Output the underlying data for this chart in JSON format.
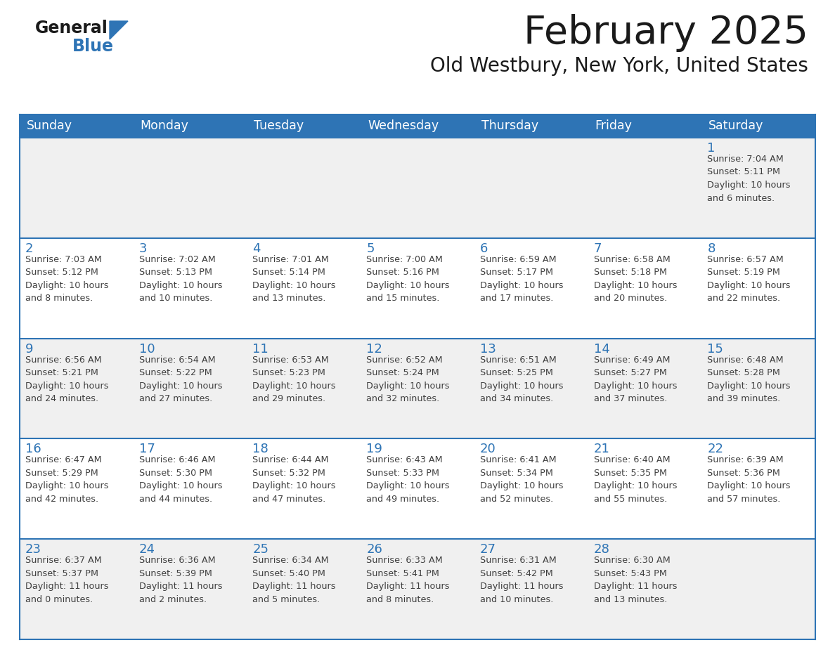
{
  "title": "February 2025",
  "subtitle": "Old Westbury, New York, United States",
  "header_bg": "#2E74B5",
  "header_text_color": "#FFFFFF",
  "row_border_color": "#2E74B5",
  "day_number_color": "#2E74B5",
  "info_text_color": "#404040",
  "background_color": "#FFFFFF",
  "alt_row_bg": "#F0F0F0",
  "days_of_week": [
    "Sunday",
    "Monday",
    "Tuesday",
    "Wednesday",
    "Thursday",
    "Friday",
    "Saturday"
  ],
  "weeks": [
    [
      {
        "day": null,
        "info": null
      },
      {
        "day": null,
        "info": null
      },
      {
        "day": null,
        "info": null
      },
      {
        "day": null,
        "info": null
      },
      {
        "day": null,
        "info": null
      },
      {
        "day": null,
        "info": null
      },
      {
        "day": 1,
        "info": "Sunrise: 7:04 AM\nSunset: 5:11 PM\nDaylight: 10 hours\nand 6 minutes."
      }
    ],
    [
      {
        "day": 2,
        "info": "Sunrise: 7:03 AM\nSunset: 5:12 PM\nDaylight: 10 hours\nand 8 minutes."
      },
      {
        "day": 3,
        "info": "Sunrise: 7:02 AM\nSunset: 5:13 PM\nDaylight: 10 hours\nand 10 minutes."
      },
      {
        "day": 4,
        "info": "Sunrise: 7:01 AM\nSunset: 5:14 PM\nDaylight: 10 hours\nand 13 minutes."
      },
      {
        "day": 5,
        "info": "Sunrise: 7:00 AM\nSunset: 5:16 PM\nDaylight: 10 hours\nand 15 minutes."
      },
      {
        "day": 6,
        "info": "Sunrise: 6:59 AM\nSunset: 5:17 PM\nDaylight: 10 hours\nand 17 minutes."
      },
      {
        "day": 7,
        "info": "Sunrise: 6:58 AM\nSunset: 5:18 PM\nDaylight: 10 hours\nand 20 minutes."
      },
      {
        "day": 8,
        "info": "Sunrise: 6:57 AM\nSunset: 5:19 PM\nDaylight: 10 hours\nand 22 minutes."
      }
    ],
    [
      {
        "day": 9,
        "info": "Sunrise: 6:56 AM\nSunset: 5:21 PM\nDaylight: 10 hours\nand 24 minutes."
      },
      {
        "day": 10,
        "info": "Sunrise: 6:54 AM\nSunset: 5:22 PM\nDaylight: 10 hours\nand 27 minutes."
      },
      {
        "day": 11,
        "info": "Sunrise: 6:53 AM\nSunset: 5:23 PM\nDaylight: 10 hours\nand 29 minutes."
      },
      {
        "day": 12,
        "info": "Sunrise: 6:52 AM\nSunset: 5:24 PM\nDaylight: 10 hours\nand 32 minutes."
      },
      {
        "day": 13,
        "info": "Sunrise: 6:51 AM\nSunset: 5:25 PM\nDaylight: 10 hours\nand 34 minutes."
      },
      {
        "day": 14,
        "info": "Sunrise: 6:49 AM\nSunset: 5:27 PM\nDaylight: 10 hours\nand 37 minutes."
      },
      {
        "day": 15,
        "info": "Sunrise: 6:48 AM\nSunset: 5:28 PM\nDaylight: 10 hours\nand 39 minutes."
      }
    ],
    [
      {
        "day": 16,
        "info": "Sunrise: 6:47 AM\nSunset: 5:29 PM\nDaylight: 10 hours\nand 42 minutes."
      },
      {
        "day": 17,
        "info": "Sunrise: 6:46 AM\nSunset: 5:30 PM\nDaylight: 10 hours\nand 44 minutes."
      },
      {
        "day": 18,
        "info": "Sunrise: 6:44 AM\nSunset: 5:32 PM\nDaylight: 10 hours\nand 47 minutes."
      },
      {
        "day": 19,
        "info": "Sunrise: 6:43 AM\nSunset: 5:33 PM\nDaylight: 10 hours\nand 49 minutes."
      },
      {
        "day": 20,
        "info": "Sunrise: 6:41 AM\nSunset: 5:34 PM\nDaylight: 10 hours\nand 52 minutes."
      },
      {
        "day": 21,
        "info": "Sunrise: 6:40 AM\nSunset: 5:35 PM\nDaylight: 10 hours\nand 55 minutes."
      },
      {
        "day": 22,
        "info": "Sunrise: 6:39 AM\nSunset: 5:36 PM\nDaylight: 10 hours\nand 57 minutes."
      }
    ],
    [
      {
        "day": 23,
        "info": "Sunrise: 6:37 AM\nSunset: 5:37 PM\nDaylight: 11 hours\nand 0 minutes."
      },
      {
        "day": 24,
        "info": "Sunrise: 6:36 AM\nSunset: 5:39 PM\nDaylight: 11 hours\nand 2 minutes."
      },
      {
        "day": 25,
        "info": "Sunrise: 6:34 AM\nSunset: 5:40 PM\nDaylight: 11 hours\nand 5 minutes."
      },
      {
        "day": 26,
        "info": "Sunrise: 6:33 AM\nSunset: 5:41 PM\nDaylight: 11 hours\nand 8 minutes."
      },
      {
        "day": 27,
        "info": "Sunrise: 6:31 AM\nSunset: 5:42 PM\nDaylight: 11 hours\nand 10 minutes."
      },
      {
        "day": 28,
        "info": "Sunrise: 6:30 AM\nSunset: 5:43 PM\nDaylight: 11 hours\nand 13 minutes."
      },
      {
        "day": null,
        "info": null
      }
    ]
  ],
  "logo_general_color": "#1a1a1a",
  "logo_blue_color": "#2E74B5",
  "logo_triangle_color": "#2E74B5",
  "title_color": "#1a1a1a",
  "subtitle_color": "#1a1a1a"
}
